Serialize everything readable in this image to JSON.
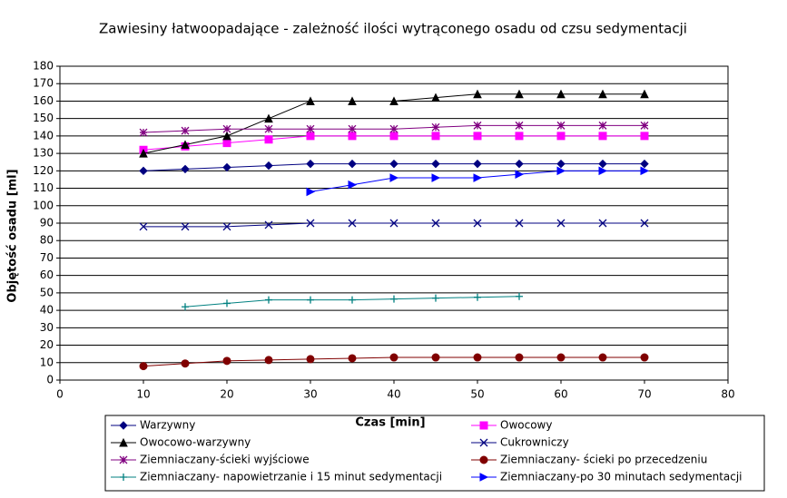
{
  "chart_data": {
    "type": "line",
    "title": "Zawiesiny łatwoopadające - zależność ilości wytrąconego osadu od czsu sedymentacji",
    "x_label": "Czas [min]",
    "y_label": "Objętość osadu [ml]",
    "xlim": [
      0,
      80
    ],
    "xticks": [
      0,
      10,
      20,
      30,
      40,
      50,
      60,
      70,
      80
    ],
    "ylim": [
      0,
      180
    ],
    "yticks": [
      0,
      10,
      20,
      30,
      40,
      50,
      60,
      70,
      80,
      90,
      100,
      110,
      120,
      130,
      140,
      150,
      160,
      170,
      180
    ],
    "grid": true,
    "series": [
      {
        "name": "Warzywny",
        "color": "#000080",
        "marker": "diamond",
        "x": [
          10,
          15,
          20,
          25,
          30,
          35,
          40,
          45,
          50,
          55,
          60,
          65,
          70
        ],
        "values": [
          120,
          121,
          122,
          123,
          124,
          124,
          124,
          124,
          124,
          124,
          124,
          124,
          124
        ]
      },
      {
        "name": "Owocowy",
        "color": "#ff00ff",
        "marker": "square",
        "x": [
          10,
          15,
          20,
          25,
          30,
          35,
          40,
          45,
          50,
          55,
          60,
          65,
          70
        ],
        "values": [
          132,
          134,
          136,
          138,
          140,
          140,
          140,
          140,
          140,
          140,
          140,
          140,
          140
        ]
      },
      {
        "name": "Owocowo-warzywny",
        "color": "#000000",
        "marker": "triangle",
        "x": [
          10,
          15,
          20,
          25,
          30,
          35,
          40,
          45,
          50,
          55,
          60,
          65,
          70
        ],
        "values": [
          130,
          135,
          140,
          150,
          160,
          160,
          160,
          162,
          164,
          164,
          164,
          164,
          164
        ]
      },
      {
        "name": "Cukrowniczy",
        "color": "#000080",
        "marker": "x",
        "x": [
          10,
          15,
          20,
          25,
          30,
          35,
          40,
          45,
          50,
          55,
          60,
          65,
          70
        ],
        "values": [
          88,
          88,
          88,
          89,
          90,
          90,
          90,
          90,
          90,
          90,
          90,
          90,
          90
        ]
      },
      {
        "name": "Ziemniaczany-ścieki wyjściowe",
        "color": "#800080",
        "marker": "star",
        "x": [
          10,
          15,
          20,
          25,
          30,
          35,
          40,
          45,
          50,
          55,
          60,
          65,
          70
        ],
        "values": [
          142,
          143,
          144,
          144,
          144,
          144,
          144,
          145,
          146,
          146,
          146,
          146,
          146
        ]
      },
      {
        "name": "Ziemniaczany- ścieki po przecedzeniu",
        "color": "#800000",
        "marker": "circle",
        "x": [
          10,
          15,
          20,
          25,
          30,
          35,
          40,
          45,
          50,
          55,
          60,
          65,
          70
        ],
        "values": [
          8,
          9.5,
          11,
          11.5,
          12,
          12.5,
          13,
          13,
          13,
          13,
          13,
          13,
          13
        ]
      },
      {
        "name": "Ziemniaczany- napowietrzanie i  15 minut sedymentacji",
        "color": "#008080",
        "marker": "plus",
        "x": [
          15,
          20,
          25,
          30,
          35,
          40,
          45,
          50,
          55
        ],
        "values": [
          42,
          44,
          46,
          46,
          46,
          46.5,
          47,
          47.5,
          48
        ]
      },
      {
        "name": "Ziemniaczany-po 30 minutach sedymentacji",
        "color": "#0000ff",
        "marker": "triangle-right",
        "x": [
          30,
          35,
          40,
          45,
          50,
          55,
          60,
          65,
          70
        ],
        "values": [
          108,
          112,
          116,
          116,
          116,
          118,
          120,
          120,
          120
        ]
      }
    ]
  }
}
